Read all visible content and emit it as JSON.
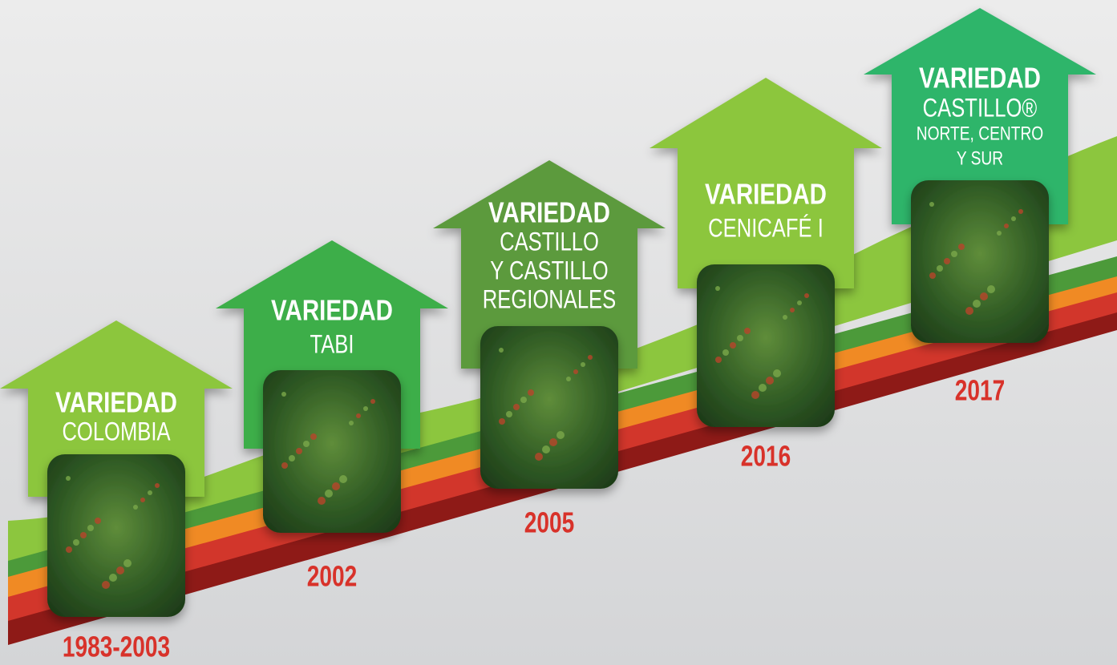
{
  "timeline": [
    {
      "title": "VARIEDAD",
      "name": [
        "COLOMBIA"
      ],
      "year": "1983-2003"
    },
    {
      "title": "VARIEDAD",
      "name": [
        "TABI"
      ],
      "year": "2002"
    },
    {
      "title": "VARIEDAD",
      "name": [
        "CASTILLO",
        "Y CASTILLO",
        "REGIONALES"
      ],
      "year": "2005"
    },
    {
      "title": "VARIEDAD",
      "name": [
        "CENICAFÉ I"
      ],
      "year": "2016"
    },
    {
      "title": "VARIEDAD",
      "name": [
        "CASTILLO®",
        "NORTE, CENTRO",
        "Y SUR"
      ],
      "year": "2017"
    }
  ]
}
